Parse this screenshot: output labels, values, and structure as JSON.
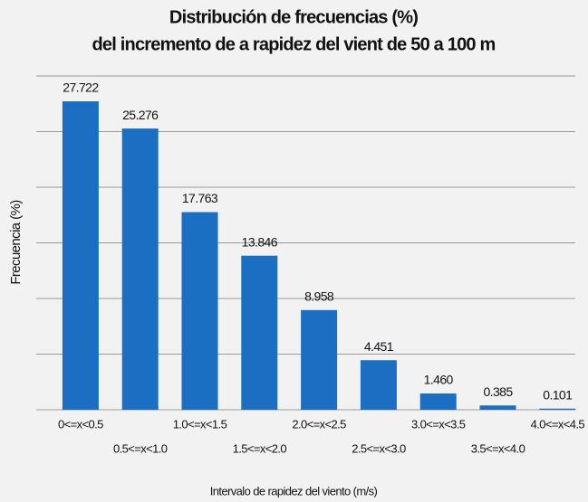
{
  "chart_data": {
    "type": "bar",
    "title": [
      "Distribución de frecuencias (%)",
      "del incremento de a rapidez del vient de 50 a 100 m"
    ],
    "x_label": "Intervalo de rapidez del viento (m/s)",
    "y_label": "Frecuencia (%)",
    "categories": [
      "0<=x<0.5",
      "0.5<=x<1.0",
      "1.0<=x<1.5",
      "1.5<=x<2.0",
      "2.0<=x<2.5",
      "2.5<=x<3.0",
      "3.0<=x<3.5",
      "3.5<=x<4.0",
      "4.0<=x<4.5"
    ],
    "values": [
      27.722,
      25.276,
      17.763,
      13.846,
      8.958,
      4.451,
      1.46,
      0.385,
      0.101
    ],
    "value_labels": [
      "27.722",
      "25.276",
      "17.763",
      "13.846",
      "8.958",
      "4.451",
      "1.460",
      "0.385",
      "0.101"
    ],
    "color": "#1b6ec2",
    "ylim": [
      0,
      30
    ],
    "yticks": [
      0,
      5,
      10,
      15,
      20,
      25,
      30
    ],
    "grid": true
  }
}
